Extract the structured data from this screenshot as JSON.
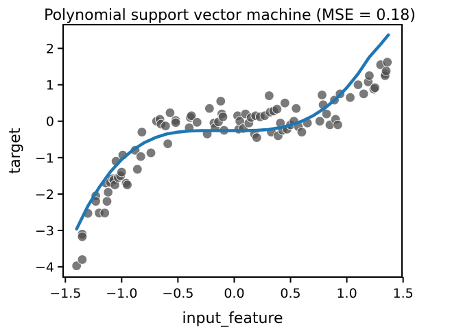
{
  "chart_data": {
    "type": "scatter",
    "title": "Polynomial support vector machine (MSE = 0.18)",
    "xlabel": "input_feature",
    "ylabel": "target",
    "xlim": [
      -1.52,
      1.49
    ],
    "ylim": [
      -4.28,
      2.65
    ],
    "xticks": [
      -1.5,
      -1.0,
      -0.5,
      0.0,
      0.5,
      1.0,
      1.5
    ],
    "xtick_labels": [
      "−1.5",
      "−1.0",
      "−0.5",
      "0.0",
      "0.5",
      "1.0",
      "1.5"
    ],
    "yticks": [
      -4,
      -3,
      -2,
      -1,
      0,
      1,
      2
    ],
    "ytick_labels": [
      "−4",
      "−3",
      "−2",
      "−1",
      "0",
      "1",
      "2"
    ],
    "grid": false,
    "legend": false,
    "colors": {
      "points": "#4d4d4d",
      "line": "#1f77b4"
    },
    "series": [
      {
        "type": "scatter",
        "points": [
          [
            -1.4,
            -3.97
          ],
          [
            -1.35,
            -3.1
          ],
          [
            -1.35,
            -3.17
          ],
          [
            -1.35,
            -3.8
          ],
          [
            -1.3,
            -2.53
          ],
          [
            -1.23,
            -2.05
          ],
          [
            -1.23,
            -2.2
          ],
          [
            -1.2,
            -2.52
          ],
          [
            -1.15,
            -2.52
          ],
          [
            -1.14,
            -1.7
          ],
          [
            -1.13,
            -2.2
          ],
          [
            -1.12,
            -1.95
          ],
          [
            -1.1,
            -1.68
          ],
          [
            -1.08,
            -1.58
          ],
          [
            -1.07,
            -1.62
          ],
          [
            -1.06,
            -1.75
          ],
          [
            -1.05,
            -1.1
          ],
          [
            -1.03,
            -1.55
          ],
          [
            -1.01,
            -1.5
          ],
          [
            -1.0,
            -1.4
          ],
          [
            -0.99,
            -0.93
          ],
          [
            -0.96,
            -1.7
          ],
          [
            -0.95,
            -1.75
          ],
          [
            -0.88,
            -0.8
          ],
          [
            -0.86,
            -1.32
          ],
          [
            -0.83,
            -0.97
          ],
          [
            -0.82,
            -0.3
          ],
          [
            -0.74,
            -0.87
          ],
          [
            -0.69,
            0.0
          ],
          [
            -0.66,
            0.05
          ],
          [
            -0.65,
            -0.08
          ],
          [
            -0.61,
            -0.13
          ],
          [
            -0.59,
            -0.62
          ],
          [
            -0.57,
            0.23
          ],
          [
            -0.52,
            0.02
          ],
          [
            -0.52,
            -0.04
          ],
          [
            -0.4,
            -0.18
          ],
          [
            -0.39,
            0.1
          ],
          [
            -0.38,
            0.15
          ],
          [
            -0.33,
            -0.03
          ],
          [
            -0.24,
            -0.35
          ],
          [
            -0.22,
            0.35
          ],
          [
            -0.18,
            -0.05
          ],
          [
            -0.17,
            -0.18
          ],
          [
            -0.14,
            -0.02
          ],
          [
            -0.12,
            0.55
          ],
          [
            -0.11,
            0.2
          ],
          [
            -0.1,
            0.12
          ],
          [
            -0.09,
            -0.25
          ],
          [
            0.03,
            0.15
          ],
          [
            0.04,
            -0.22
          ],
          [
            0.05,
            0.0
          ],
          [
            0.08,
            -0.2
          ],
          [
            0.1,
            0.2
          ],
          [
            0.13,
            -0.05
          ],
          [
            0.15,
            0.1
          ],
          [
            0.18,
            -0.35
          ],
          [
            0.19,
            0.15
          ],
          [
            0.2,
            -0.45
          ],
          [
            0.23,
            0.12
          ],
          [
            0.27,
            0.15
          ],
          [
            0.31,
            0.7
          ],
          [
            0.32,
            0.25
          ],
          [
            0.33,
            -0.3
          ],
          [
            0.35,
            0.28
          ],
          [
            0.38,
            0.33
          ],
          [
            0.39,
            -0.4
          ],
          [
            0.41,
            -0.05
          ],
          [
            0.43,
            -0.25
          ],
          [
            0.45,
            0.5
          ],
          [
            0.47,
            -0.22
          ],
          [
            0.5,
            -0.1
          ],
          [
            0.53,
            0.0
          ],
          [
            0.55,
            0.35
          ],
          [
            0.57,
            -0.15
          ],
          [
            0.6,
            -0.3
          ],
          [
            0.65,
            -0.05
          ],
          [
            0.76,
            0.0
          ],
          [
            0.78,
            0.72
          ],
          [
            0.79,
            0.45
          ],
          [
            0.82,
            0.2
          ],
          [
            0.85,
            -0.1
          ],
          [
            0.89,
            0.58
          ],
          [
            0.9,
            0.05
          ],
          [
            0.92,
            -0.1
          ],
          [
            0.94,
            0.75
          ],
          [
            1.03,
            0.65
          ],
          [
            1.1,
            1.0
          ],
          [
            1.15,
            0.75
          ],
          [
            1.19,
            1.08
          ],
          [
            1.2,
            1.25
          ],
          [
            1.24,
            0.88
          ],
          [
            1.25,
            0.92
          ],
          [
            1.3,
            1.55
          ],
          [
            1.34,
            1.3
          ],
          [
            1.34,
            1.25
          ],
          [
            1.35,
            1.38
          ],
          [
            1.36,
            1.62
          ]
        ]
      },
      {
        "type": "line",
        "description": "polynomial fit",
        "x": [
          -1.4,
          -1.3,
          -1.2,
          -1.1,
          -1.0,
          -0.9,
          -0.8,
          -0.7,
          -0.6,
          -0.5,
          -0.4,
          -0.3,
          -0.2,
          -0.1,
          0.0,
          0.1,
          0.2,
          0.3,
          0.4,
          0.5,
          0.6,
          0.7,
          0.8,
          0.9,
          1.0,
          1.1,
          1.2,
          1.3,
          1.37
        ],
        "y": [
          -2.96,
          -2.33,
          -1.82,
          -1.39,
          -1.05,
          -0.79,
          -0.59,
          -0.45,
          -0.35,
          -0.3,
          -0.27,
          -0.26,
          -0.26,
          -0.26,
          -0.26,
          -0.26,
          -0.25,
          -0.23,
          -0.18,
          -0.11,
          0.0,
          0.15,
          0.35,
          0.6,
          0.92,
          1.3,
          1.76,
          2.11,
          2.37
        ]
      }
    ]
  }
}
